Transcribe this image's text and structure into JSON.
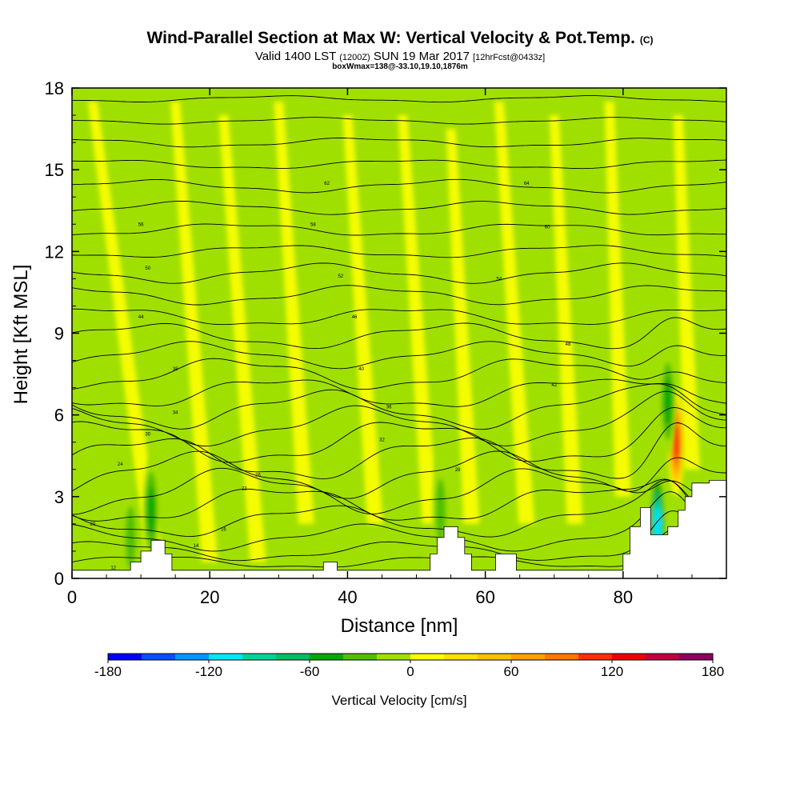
{
  "title": {
    "main": "Wind-Parallel Section at Max W: Vertical Velocity & Pot.Temp.",
    "copyright": "(C)",
    "valid_prefix": "Valid 1400 LST",
    "utc": "(1200Z)",
    "date": "SUN 19 Mar 2017",
    "forecast": "[12hrFcst@0433z]",
    "box_info": "boxWmax=138@-33.10,19.10,1876m"
  },
  "chart_data": {
    "type": "heatmap",
    "xlabel": "Distance [nm]",
    "ylabel": "Height [Kft MSL]",
    "xlim": [
      0,
      95
    ],
    "ylim": [
      0,
      18
    ],
    "x_ticks": [
      "0",
      "20",
      "40",
      "60",
      "80"
    ],
    "y_ticks": [
      "0",
      "3",
      "6",
      "9",
      "12",
      "15",
      "18"
    ],
    "colorbar": {
      "label": "Vertical Velocity [cm/s]",
      "min": -180,
      "max": 180,
      "step": 20,
      "tick_labels": [
        "-180",
        "-120",
        "-60",
        "0",
        "60",
        "120",
        "180"
      ],
      "colors": [
        "#0000ff",
        "#0050ff",
        "#0096ff",
        "#00e6ff",
        "#00d296",
        "#00be64",
        "#00aa00",
        "#50c000",
        "#a0e000",
        "#ffff00",
        "#ffe000",
        "#ffc000",
        "#ffa000",
        "#ff7800",
        "#ff3000",
        "#ee0000",
        "#c00040",
        "#900060"
      ]
    },
    "background_velocity_cm_s": 0,
    "features": [
      {
        "name": "updraft",
        "x_nm": 87.7,
        "height_kft": 5.0,
        "peak_cm_s": 138
      },
      {
        "name": "downdraft",
        "x_nm": 85.0,
        "height_kft": 2.0,
        "peak_cm_s": -130
      },
      {
        "name": "downdraft",
        "x_nm": 86.5,
        "height_kft": 6.5,
        "peak_cm_s": -70
      },
      {
        "name": "downdraft",
        "x_nm": 11.5,
        "height_kft": 2.5,
        "peak_cm_s": -60
      },
      {
        "name": "downdraft",
        "x_nm": 8.5,
        "height_kft": 1.5,
        "peak_cm_s": -55
      },
      {
        "name": "downdraft",
        "x_nm": 53.5,
        "height_kft": 2.5,
        "peak_cm_s": -40
      }
    ],
    "terrain": [
      [
        0,
        0.3
      ],
      [
        8.5,
        0.3
      ],
      [
        8.5,
        0.6
      ],
      [
        10,
        0.6
      ],
      [
        10,
        1.0
      ],
      [
        11.5,
        1.0
      ],
      [
        11.5,
        1.4
      ],
      [
        13.5,
        1.4
      ],
      [
        13.5,
        0.9
      ],
      [
        14.5,
        0.9
      ],
      [
        14.5,
        0.3
      ],
      [
        36.5,
        0.3
      ],
      [
        36.5,
        0.6
      ],
      [
        38.5,
        0.6
      ],
      [
        38.5,
        0.3
      ],
      [
        52,
        0.3
      ],
      [
        52,
        0.9
      ],
      [
        53,
        0.9
      ],
      [
        53,
        1.5
      ],
      [
        54,
        1.5
      ],
      [
        54,
        1.9
      ],
      [
        56,
        1.9
      ],
      [
        56,
        1.5
      ],
      [
        57,
        1.5
      ],
      [
        57,
        0.9
      ],
      [
        58,
        0.9
      ],
      [
        58,
        0.3
      ],
      [
        61.5,
        0.3
      ],
      [
        61.5,
        0.9
      ],
      [
        64.5,
        0.9
      ],
      [
        64.5,
        0.3
      ],
      [
        80,
        0.3
      ],
      [
        80,
        0.9
      ],
      [
        81,
        0.9
      ],
      [
        81,
        1.9
      ],
      [
        82.5,
        1.9
      ],
      [
        82.5,
        2.6
      ],
      [
        84,
        2.6
      ],
      [
        84,
        1.6
      ],
      [
        86.5,
        1.6
      ],
      [
        86.5,
        1.9
      ],
      [
        88,
        1.9
      ],
      [
        88,
        2.5
      ],
      [
        89,
        2.5
      ],
      [
        89,
        3.0
      ],
      [
        90,
        3.0
      ],
      [
        90,
        3.5
      ],
      [
        92.5,
        3.5
      ],
      [
        92.5,
        3.6
      ],
      [
        95,
        3.6
      ],
      [
        95,
        0
      ]
    ],
    "isentropes": [
      {
        "y0": 0.6,
        "amp": 0.2,
        "label": "12",
        "lx": 6,
        "ly": 0.4
      },
      {
        "y0": 1.0,
        "amp": 0.3,
        "label": "14",
        "lx": 18,
        "ly": 1.2
      },
      {
        "y0": 1.5,
        "amp": 0.4,
        "label": "16",
        "lx": 22,
        "ly": 1.8
      },
      {
        "y0": 2.1,
        "amp": 0.5,
        "label": "20",
        "lx": 3,
        "ly": 2.0
      },
      {
        "y0": 2.7,
        "amp": 0.6,
        "label": "22",
        "lx": 25,
        "ly": 3.3
      },
      {
        "y0": 3.2,
        "amp": 0.7,
        "label": "24",
        "lx": 7,
        "ly": 4.2
      },
      {
        "y0": 3.8,
        "amp": 0.7,
        "label": "26",
        "lx": 27,
        "ly": 3.8
      },
      {
        "y0": 4.4,
        "amp": 0.7,
        "label": "28",
        "lx": 56,
        "ly": 4.0
      },
      {
        "y0": 5.0,
        "amp": 0.7,
        "label": "30",
        "lx": 11,
        "ly": 5.3
      },
      {
        "y0": 5.6,
        "amp": 0.6,
        "label": "32",
        "lx": 45,
        "ly": 5.1
      },
      {
        "y0": 6.2,
        "amp": 0.6,
        "label": "34",
        "lx": 15,
        "ly": 6.1
      },
      {
        "y0": 6.8,
        "amp": 0.5,
        "label": "36",
        "lx": 46,
        "ly": 6.3
      },
      {
        "y0": 7.5,
        "amp": 0.5,
        "label": "38",
        "lx": 15,
        "ly": 7.7
      },
      {
        "y0": 8.2,
        "amp": 0.4,
        "label": "40",
        "lx": 42,
        "ly": 7.7
      },
      {
        "y0": 8.9,
        "amp": 0.4,
        "label": "42",
        "lx": 70,
        "ly": 7.1
      },
      {
        "y0": 9.6,
        "amp": 0.3,
        "label": "44",
        "lx": 10,
        "ly": 9.6
      },
      {
        "y0": 10.4,
        "amp": 0.3,
        "label": "46",
        "lx": 41,
        "ly": 9.6
      },
      {
        "y0": 11.2,
        "amp": 0.3,
        "label": "48",
        "lx": 72,
        "ly": 8.6
      },
      {
        "y0": 12.0,
        "amp": 0.2,
        "label": "50",
        "lx": 11,
        "ly": 11.4
      },
      {
        "y0": 12.8,
        "amp": 0.2,
        "label": "52",
        "lx": 39,
        "ly": 11.1
      },
      {
        "y0": 13.6,
        "amp": 0.2,
        "label": "54",
        "lx": 62,
        "ly": 11.0
      },
      {
        "y0": 14.4,
        "amp": 0.2,
        "label": "56",
        "lx": 10,
        "ly": 13.0
      },
      {
        "y0": 15.2,
        "amp": 0.15,
        "label": "58",
        "lx": 35,
        "ly": 13.0
      },
      {
        "y0": 16.0,
        "amp": 0.15,
        "label": "60",
        "lx": 69,
        "ly": 12.9
      },
      {
        "y0": 16.8,
        "amp": 0.1,
        "label": "62",
        "lx": 37,
        "ly": 14.5
      },
      {
        "y0": 17.6,
        "amp": 0.1,
        "label": "64",
        "lx": 66,
        "ly": 14.5
      }
    ]
  }
}
